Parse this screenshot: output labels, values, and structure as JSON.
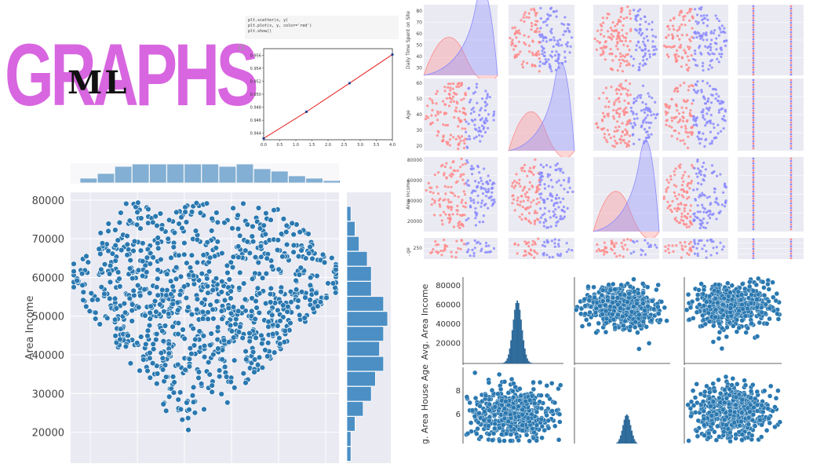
{
  "title": {
    "main": "GRAPHS",
    "overlay": "ML"
  },
  "colors": {
    "title": "#d866e0",
    "points": "#2a78b0",
    "hist": "#4b8fc4",
    "bg": "#eaeaf2",
    "pink": "#ff8a8a",
    "blue": "#8a8aff",
    "line_red": "#e41a1c"
  },
  "code_cell": {
    "lines": [
      "plt.scatter(x, y)",
      "plt.plot(x, y, color='red')",
      "plt.show()"
    ]
  },
  "chart_data": [
    {
      "type": "scatter",
      "title": "",
      "xlabel": "",
      "ylabel": "Area Income",
      "ylim": [
        12000,
        82000
      ],
      "yticks": [
        "80000",
        "70000",
        "60000",
        "50000",
        "40000",
        "30000",
        "20000"
      ],
      "marginal_x_hist": [
        2,
        4,
        7,
        8,
        8,
        8,
        8,
        8,
        7,
        8,
        6,
        5,
        3,
        2,
        1
      ],
      "marginal_y_hist": [
        1,
        2,
        3,
        5,
        6,
        6,
        9,
        10,
        9,
        8,
        9,
        7,
        6,
        4,
        2,
        1,
        1
      ],
      "grid": true
    },
    {
      "type": "line",
      "title": "",
      "x": [
        0.0,
        1.33,
        2.67,
        4.0
      ],
      "y": [
        0.9432,
        0.9473,
        0.9517,
        0.9561
      ],
      "xlim": [
        0,
        4
      ],
      "ylim": [
        0.943,
        0.957
      ],
      "xticks": [
        "0.0",
        "0.5",
        "1.0",
        "1.5",
        "2.0",
        "2.5",
        "3.0",
        "3.5",
        "4.0"
      ],
      "yticks": [
        "0.944",
        "0.946",
        "0.948",
        "0.950",
        "0.952",
        "0.954",
        "0.956"
      ]
    },
    {
      "type": "scatter",
      "title": "",
      "row_labels": [
        "Daily Time Spent on Site",
        "Age",
        "Area Income",
        "..ge"
      ],
      "ticks_row1": [
        "80",
        "70",
        "60",
        "50",
        "40",
        "30"
      ],
      "ticks_row2": [
        "60",
        "50",
        "40",
        "30",
        "20"
      ],
      "ticks_row3": [
        "80000",
        "60000",
        "40000",
        "20000"
      ],
      "ticks_row4": [
        "250"
      ],
      "grid": true
    },
    {
      "type": "scatter",
      "title": "",
      "row_labels": [
        "Avg. Area Income",
        "g. Area House Age"
      ],
      "ticks_row1": [
        "80000",
        "60000",
        "40000",
        "20000"
      ],
      "ticks_row2": [
        "8",
        "6"
      ]
    }
  ]
}
